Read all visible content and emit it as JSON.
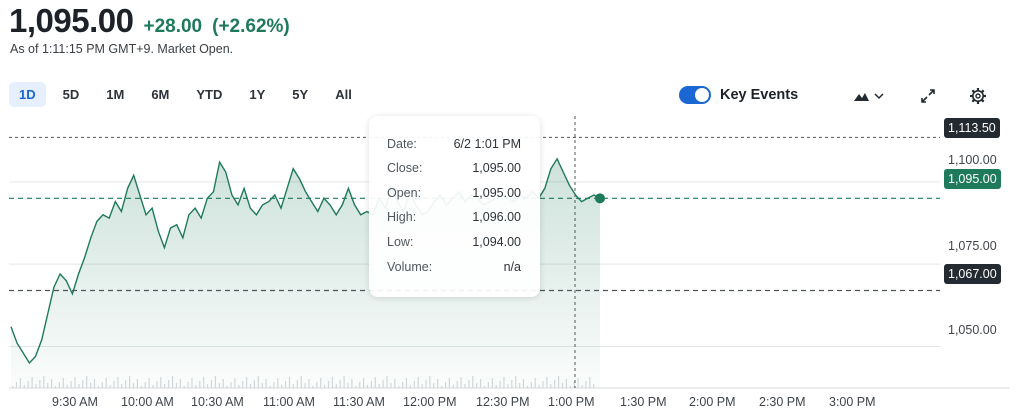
{
  "quote": {
    "price": "1,095.00",
    "change": "+28.00",
    "change_pct": "(+2.62%)",
    "as_of": "As of 1:11:15 PM GMT+9. Market Open.",
    "up_color": "#1e7a5a"
  },
  "ranges": [
    {
      "label": "1D",
      "active": true
    },
    {
      "label": "5D",
      "active": false
    },
    {
      "label": "1M",
      "active": false
    },
    {
      "label": "6M",
      "active": false
    },
    {
      "label": "YTD",
      "active": false
    },
    {
      "label": "1Y",
      "active": false
    },
    {
      "label": "5Y",
      "active": false
    },
    {
      "label": "All",
      "active": false
    }
  ],
  "toolbar": {
    "key_events_label": "Key Events",
    "key_events_on": true,
    "chart_type_icon": "mountain-chart-icon",
    "dropdown_icon": "chevron-down-icon",
    "expand_icon": "expand-icon",
    "settings_icon": "gear-icon"
  },
  "tooltip": {
    "rows": [
      {
        "key": "Date:",
        "value": "6/2 1:01 PM"
      },
      {
        "key": "Close:",
        "value": "1,095.00"
      },
      {
        "key": "Open:",
        "value": "1,095.00"
      },
      {
        "key": "High:",
        "value": "1,096.00"
      },
      {
        "key": "Low:",
        "value": "1,094.00"
      },
      {
        "key": "Volume:",
        "value": "n/a"
      }
    ]
  },
  "chart_data": {
    "type": "area",
    "x_ticks": [
      "9:30 AM",
      "10:00 AM",
      "10:30 AM",
      "11:00 AM",
      "11:30 AM",
      "12:00 PM",
      "12:30 PM",
      "1:00 PM",
      "1:30 PM",
      "2:00 PM",
      "2:30 PM",
      "3:00 PM"
    ],
    "y_ticks": [
      "1,100.00",
      "1,075.00",
      "1,050.00"
    ],
    "y_tick_values": [
      1100,
      1075,
      1050
    ],
    "ylim": [
      1038,
      1120
    ],
    "tags": {
      "crosshair_price": "1,113.50",
      "current_price": "1,095.00",
      "previous_close": "1,067.00"
    },
    "values": [
      1056,
      1051,
      1048,
      1045,
      1047,
      1052,
      1060,
      1068,
      1072,
      1070,
      1066,
      1072,
      1077,
      1083,
      1088,
      1090,
      1089,
      1094,
      1091,
      1098,
      1102,
      1096,
      1090,
      1092,
      1085,
      1080,
      1086,
      1087,
      1083,
      1090,
      1092,
      1089,
      1095,
      1097,
      1106,
      1103,
      1096,
      1093,
      1098,
      1092,
      1090,
      1093,
      1094,
      1096,
      1092,
      1098,
      1104,
      1101,
      1097,
      1094,
      1091,
      1095,
      1093,
      1090,
      1093,
      1098,
      1093,
      1090,
      1091,
      1090,
      1095,
      1092,
      1098,
      1094,
      1091,
      1097,
      1093,
      1090,
      1091,
      1094,
      1096,
      1093,
      1095,
      1097,
      1094,
      1096,
      1095,
      1093,
      1094,
      1095,
      1096,
      1095,
      1094,
      1096,
      1095,
      1097,
      1095,
      1098,
      1104,
      1107,
      1103,
      1099,
      1096,
      1094,
      1095,
      1096,
      1095
    ]
  }
}
